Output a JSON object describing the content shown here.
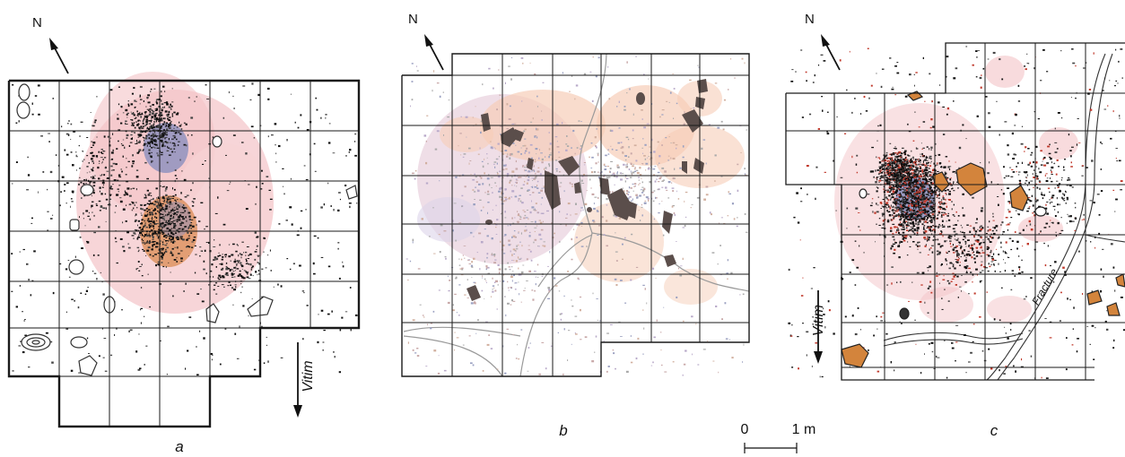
{
  "figure": {
    "panels": [
      {
        "id": "a",
        "letter": "a",
        "north": "N",
        "river": "Vitim"
      },
      {
        "id": "b",
        "letter": "b",
        "north": "N"
      },
      {
        "id": "c",
        "letter": "c",
        "north": "N",
        "river": "Vitim",
        "fracture": "Fracture"
      }
    ],
    "scale": {
      "start": "0",
      "end": "1 m"
    },
    "colors": {
      "grid": "#1a1a1a",
      "halo_pink": "#f3c3c7",
      "halo_peach": "#f6cdb8",
      "hearth_blue": "#8b8fbe",
      "hearth_orange": "#d9864a",
      "stone_dark": "#5b4e4b",
      "stone_orange": "#d3843c",
      "artifact_black": "#111111",
      "artifact_red": "#c0392b"
    }
  }
}
